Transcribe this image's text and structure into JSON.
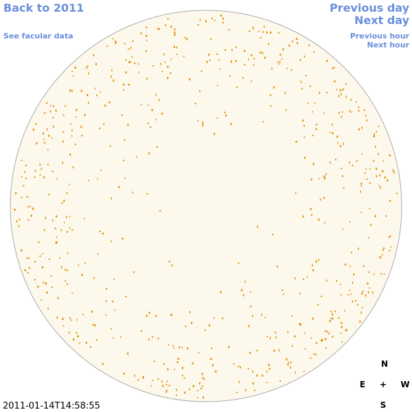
{
  "links": {
    "back": "Back to 2011",
    "facular": "See facular data",
    "previous_day": "Previous day",
    "next_day": "Next day",
    "previous_hour": "Previous hour",
    "next_hour": "Next hour"
  },
  "timestamp": "2011-01-14T14:58:55",
  "compass": {
    "north": "N",
    "east": "E",
    "center": "+",
    "west": "W",
    "south": "S"
  }
}
